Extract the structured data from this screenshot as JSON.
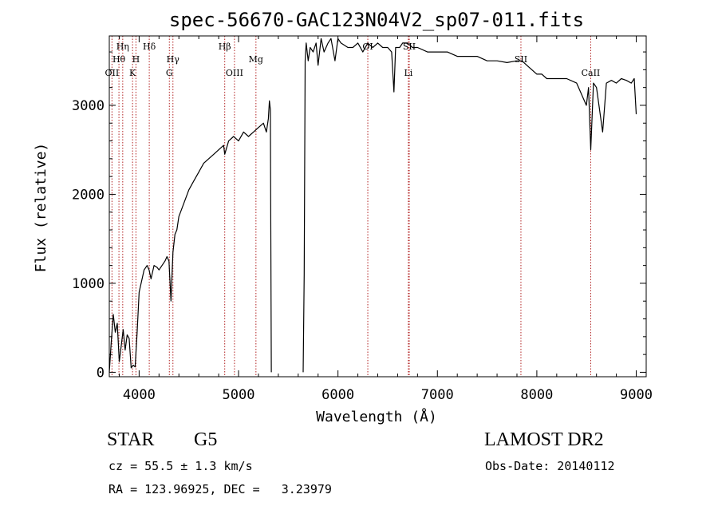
{
  "chart_data": {
    "type": "line",
    "title": "spec-56670-GAC123N04V2_sp07-011.fits",
    "xlabel": "Wavelength (Å)",
    "ylabel": "Flux (relative)",
    "xlim": [
      3700,
      9100
    ],
    "ylim": [
      -50,
      3780
    ],
    "xticks": [
      4000,
      5000,
      6000,
      7000,
      8000,
      9000
    ],
    "yticks": [
      0,
      1000,
      2000,
      3000
    ],
    "grid": false,
    "line_color": "#000000",
    "marker_color": "#b22222",
    "series": [
      {
        "x": [
          3700,
          3720,
          3740,
          3760,
          3780,
          3800,
          3820,
          3840,
          3860,
          3880,
          3900,
          3920,
          3940,
          3960,
          3980,
          4000,
          4020,
          4050,
          4080,
          4100,
          4120,
          4150,
          4180,
          4200,
          4230,
          4260,
          4280,
          4300,
          4320,
          4340,
          4360,
          4380,
          4400,
          4450,
          4500,
          4550,
          4600,
          4650,
          4700,
          4750,
          4800,
          4850,
          4861,
          4900,
          4950,
          5000,
          5050,
          5100,
          5150,
          5200,
          5250,
          5280,
          5300,
          5310,
          5320,
          5330
        ],
        "y": [
          0,
          350,
          650,
          450,
          550,
          120,
          300,
          480,
          250,
          420,
          380,
          50,
          80,
          60,
          450,
          900,
          1000,
          1150,
          1200,
          1150,
          1050,
          1200,
          1180,
          1150,
          1200,
          1250,
          1300,
          1250,
          800,
          1350,
          1550,
          1600,
          1750,
          1900,
          2050,
          2150,
          2250,
          2350,
          2400,
          2450,
          2500,
          2550,
          2450,
          2600,
          2650,
          2600,
          2700,
          2650,
          2700,
          2750,
          2800,
          2700,
          2850,
          3050,
          2950,
          0
        ]
      },
      {
        "x": [
          5650,
          5660,
          5670,
          5680,
          5700,
          5720,
          5750,
          5780,
          5800,
          5830,
          5860,
          5900,
          5930,
          5970,
          6000,
          6030,
          6100,
          6150,
          6200,
          6250,
          6300,
          6350,
          6400,
          6450,
          6500,
          6540,
          6563,
          6580,
          6620,
          6650,
          6700,
          6750,
          6800,
          6900,
          7000,
          7100,
          7200,
          7300,
          7400,
          7500,
          7600,
          7700,
          7800,
          7850,
          7900,
          7950,
          8000,
          8050,
          8100,
          8200,
          8300,
          8400,
          8498,
          8520,
          8542,
          8570,
          8600,
          8662,
          8700,
          8750,
          8800,
          8850,
          8900,
          8950,
          8980,
          9000
        ],
        "y": [
          0,
          1100,
          3500,
          3700,
          3500,
          3650,
          3600,
          3700,
          3450,
          3750,
          3600,
          3700,
          3750,
          3500,
          3750,
          3700,
          3650,
          3650,
          3700,
          3600,
          3700,
          3650,
          3700,
          3650,
          3650,
          3600,
          3150,
          3650,
          3650,
          3700,
          3700,
          3650,
          3650,
          3600,
          3600,
          3600,
          3550,
          3550,
          3550,
          3500,
          3500,
          3480,
          3500,
          3500,
          3450,
          3400,
          3350,
          3350,
          3300,
          3300,
          3300,
          3250,
          3000,
          3200,
          2500,
          3250,
          3200,
          2700,
          3250,
          3280,
          3250,
          3300,
          3280,
          3250,
          3300,
          2900
        ]
      }
    ],
    "line_markers": [
      {
        "label": "OII",
        "x": 3727,
        "row": 3
      },
      {
        "label": "Hθ",
        "x": 3797,
        "row": 2
      },
      {
        "label": "Hη",
        "x": 3835,
        "row": 1
      },
      {
        "label": "K",
        "x": 3934,
        "row": 3
      },
      {
        "label": "H",
        "x": 3968,
        "row": 2
      },
      {
        "label": "Hδ",
        "x": 4102,
        "row": 1
      },
      {
        "label": "G",
        "x": 4304,
        "row": 3
      },
      {
        "label": "Hγ",
        "x": 4340,
        "row": 2
      },
      {
        "label": "Hβ",
        "x": 4861,
        "row": 1
      },
      {
        "label": "OIII",
        "x": 4959,
        "row": 3
      },
      {
        "label": "Mg",
        "x": 5175,
        "row": 2
      },
      {
        "label": "OI",
        "x": 6300,
        "row": 1
      },
      {
        "label": "SII",
        "x": 6717,
        "row": 1
      },
      {
        "label": "Li",
        "x": 6708,
        "row": 3
      },
      {
        "label": "SII",
        "x": 7840,
        "row": 2
      },
      {
        "label": "CaII",
        "x": 8542,
        "row": 3
      }
    ]
  },
  "info": {
    "class_label": "STAR",
    "subclass": "G5",
    "survey": "LAMOST DR2",
    "cz_text": "cz = 55.5 ± 1.3 km/s",
    "obs_date_text": "Obs-Date: 20140112",
    "coords_text": "RA = 123.96925, DEC =   3.23979"
  }
}
